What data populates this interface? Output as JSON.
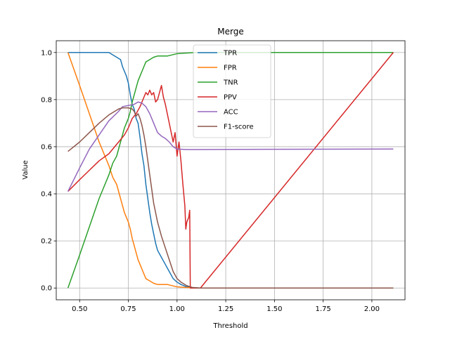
{
  "chart_data": {
    "type": "line",
    "title": "Merge",
    "xlabel": "Threshold",
    "ylabel": "Value",
    "xlim": [
      0.38,
      2.17
    ],
    "ylim": [
      -0.05,
      1.05
    ],
    "xticks": [
      0.5,
      0.75,
      1.0,
      1.25,
      1.5,
      1.75,
      2.0
    ],
    "xtick_labels": [
      "0.50",
      "0.75",
      "1.00",
      "1.25",
      "1.50",
      "1.75",
      "2.00"
    ],
    "yticks": [
      0.0,
      0.2,
      0.4,
      0.6,
      0.8,
      1.0
    ],
    "ytick_labels": [
      "0.0",
      "0.2",
      "0.4",
      "0.6",
      "0.8",
      "1.0"
    ],
    "grid": true,
    "legend_position": "top-center",
    "series": [
      {
        "name": "TPR",
        "color": "#1f77b4",
        "points": [
          [
            0.44,
            1.0
          ],
          [
            0.5,
            1.0
          ],
          [
            0.6,
            1.0
          ],
          [
            0.65,
            1.0
          ],
          [
            0.67,
            0.99
          ],
          [
            0.69,
            0.98
          ],
          [
            0.71,
            0.97
          ],
          [
            0.72,
            0.94
          ],
          [
            0.73,
            0.92
          ],
          [
            0.74,
            0.9
          ],
          [
            0.75,
            0.87
          ],
          [
            0.76,
            0.82
          ],
          [
            0.77,
            0.78
          ],
          [
            0.78,
            0.76
          ],
          [
            0.79,
            0.72
          ],
          [
            0.8,
            0.7
          ],
          [
            0.81,
            0.64
          ],
          [
            0.82,
            0.57
          ],
          [
            0.83,
            0.52
          ],
          [
            0.84,
            0.44
          ],
          [
            0.85,
            0.38
          ],
          [
            0.86,
            0.32
          ],
          [
            0.87,
            0.27
          ],
          [
            0.88,
            0.23
          ],
          [
            0.89,
            0.19
          ],
          [
            0.9,
            0.16
          ],
          [
            0.92,
            0.13
          ],
          [
            0.94,
            0.1
          ],
          [
            0.96,
            0.07
          ],
          [
            0.98,
            0.04
          ],
          [
            1.0,
            0.025
          ],
          [
            1.02,
            0.015
          ],
          [
            1.05,
            0.005
          ],
          [
            1.08,
            0.001
          ],
          [
            1.12,
            0.0
          ],
          [
            1.5,
            0.0
          ],
          [
            2.11,
            0.0
          ]
        ]
      },
      {
        "name": "FPR",
        "color": "#ff7f0e",
        "points": [
          [
            0.44,
            1.0
          ],
          [
            0.5,
            0.86
          ],
          [
            0.55,
            0.74
          ],
          [
            0.6,
            0.62
          ],
          [
            0.65,
            0.52
          ],
          [
            0.67,
            0.47
          ],
          [
            0.69,
            0.44
          ],
          [
            0.71,
            0.38
          ],
          [
            0.72,
            0.35
          ],
          [
            0.73,
            0.32
          ],
          [
            0.74,
            0.3
          ],
          [
            0.75,
            0.28
          ],
          [
            0.76,
            0.25
          ],
          [
            0.77,
            0.21
          ],
          [
            0.78,
            0.18
          ],
          [
            0.79,
            0.15
          ],
          [
            0.8,
            0.12
          ],
          [
            0.81,
            0.1
          ],
          [
            0.82,
            0.08
          ],
          [
            0.83,
            0.06
          ],
          [
            0.84,
            0.04
          ],
          [
            0.85,
            0.035
          ],
          [
            0.86,
            0.03
          ],
          [
            0.88,
            0.02
          ],
          [
            0.9,
            0.015
          ],
          [
            0.95,
            0.015
          ],
          [
            1.0,
            0.005
          ],
          [
            1.05,
            0.002
          ],
          [
            1.1,
            0.0
          ],
          [
            1.5,
            0.0
          ],
          [
            2.11,
            0.0
          ]
        ]
      },
      {
        "name": "TNR",
        "color": "#2ca02c",
        "points": [
          [
            0.44,
            0.0
          ],
          [
            0.5,
            0.14
          ],
          [
            0.55,
            0.26
          ],
          [
            0.6,
            0.38
          ],
          [
            0.65,
            0.48
          ],
          [
            0.67,
            0.53
          ],
          [
            0.69,
            0.56
          ],
          [
            0.71,
            0.62
          ],
          [
            0.72,
            0.65
          ],
          [
            0.73,
            0.68
          ],
          [
            0.74,
            0.7
          ],
          [
            0.75,
            0.72
          ],
          [
            0.76,
            0.75
          ],
          [
            0.77,
            0.79
          ],
          [
            0.78,
            0.82
          ],
          [
            0.79,
            0.85
          ],
          [
            0.8,
            0.88
          ],
          [
            0.81,
            0.9
          ],
          [
            0.82,
            0.92
          ],
          [
            0.83,
            0.94
          ],
          [
            0.84,
            0.96
          ],
          [
            0.85,
            0.965
          ],
          [
            0.86,
            0.97
          ],
          [
            0.88,
            0.98
          ],
          [
            0.9,
            0.985
          ],
          [
            0.95,
            0.985
          ],
          [
            1.0,
            0.995
          ],
          [
            1.05,
            0.998
          ],
          [
            1.1,
            1.0
          ],
          [
            1.5,
            1.0
          ],
          [
            2.11,
            1.0
          ]
        ]
      },
      {
        "name": "PPV",
        "color": "#d62728",
        "points": [
          [
            0.44,
            0.41
          ],
          [
            0.5,
            0.46
          ],
          [
            0.55,
            0.5
          ],
          [
            0.6,
            0.54
          ],
          [
            0.65,
            0.57
          ],
          [
            0.7,
            0.62
          ],
          [
            0.73,
            0.65
          ],
          [
            0.75,
            0.68
          ],
          [
            0.77,
            0.72
          ],
          [
            0.79,
            0.74
          ],
          [
            0.81,
            0.77
          ],
          [
            0.83,
            0.81
          ],
          [
            0.84,
            0.83
          ],
          [
            0.85,
            0.82
          ],
          [
            0.86,
            0.84
          ],
          [
            0.87,
            0.82
          ],
          [
            0.88,
            0.83
          ],
          [
            0.89,
            0.79
          ],
          [
            0.9,
            0.8
          ],
          [
            0.91,
            0.83
          ],
          [
            0.92,
            0.86
          ],
          [
            0.93,
            0.81
          ],
          [
            0.94,
            0.78
          ],
          [
            0.95,
            0.74
          ],
          [
            0.96,
            0.7
          ],
          [
            0.97,
            0.66
          ],
          [
            0.98,
            0.62
          ],
          [
            0.99,
            0.66
          ],
          [
            1.0,
            0.56
          ],
          [
            1.01,
            0.62
          ],
          [
            1.02,
            0.54
          ],
          [
            1.03,
            0.44
          ],
          [
            1.04,
            0.35
          ],
          [
            1.045,
            0.25
          ],
          [
            1.05,
            0.28
          ],
          [
            1.06,
            0.3
          ],
          [
            1.065,
            0.33
          ],
          [
            1.068,
            0.0
          ],
          [
            1.1,
            0.0
          ],
          [
            1.12,
            0.0
          ],
          [
            2.11,
            1.0
          ]
        ]
      },
      {
        "name": "ACC",
        "color": "#9467bd",
        "points": [
          [
            0.44,
            0.41
          ],
          [
            0.5,
            0.51
          ],
          [
            0.55,
            0.59
          ],
          [
            0.6,
            0.65
          ],
          [
            0.65,
            0.71
          ],
          [
            0.7,
            0.75
          ],
          [
            0.72,
            0.77
          ],
          [
            0.75,
            0.775
          ],
          [
            0.78,
            0.78
          ],
          [
            0.8,
            0.79
          ],
          [
            0.82,
            0.785
          ],
          [
            0.84,
            0.77
          ],
          [
            0.86,
            0.74
          ],
          [
            0.88,
            0.7
          ],
          [
            0.9,
            0.66
          ],
          [
            0.92,
            0.645
          ],
          [
            0.94,
            0.635
          ],
          [
            0.96,
            0.62
          ],
          [
            0.98,
            0.6
          ],
          [
            1.0,
            0.59
          ],
          [
            1.05,
            0.588
          ],
          [
            1.1,
            0.588
          ],
          [
            1.5,
            0.589
          ],
          [
            2.11,
            0.59
          ]
        ]
      },
      {
        "name": "F1-score",
        "color": "#8c564b",
        "points": [
          [
            0.44,
            0.58
          ],
          [
            0.5,
            0.62
          ],
          [
            0.55,
            0.66
          ],
          [
            0.6,
            0.7
          ],
          [
            0.65,
            0.735
          ],
          [
            0.7,
            0.76
          ],
          [
            0.72,
            0.765
          ],
          [
            0.75,
            0.765
          ],
          [
            0.77,
            0.76
          ],
          [
            0.78,
            0.75
          ],
          [
            0.79,
            0.73
          ],
          [
            0.8,
            0.74
          ],
          [
            0.81,
            0.72
          ],
          [
            0.82,
            0.69
          ],
          [
            0.83,
            0.65
          ],
          [
            0.84,
            0.6
          ],
          [
            0.85,
            0.54
          ],
          [
            0.86,
            0.48
          ],
          [
            0.87,
            0.42
          ],
          [
            0.88,
            0.36
          ],
          [
            0.89,
            0.32
          ],
          [
            0.9,
            0.28
          ],
          [
            0.92,
            0.22
          ],
          [
            0.94,
            0.17
          ],
          [
            0.96,
            0.12
          ],
          [
            0.98,
            0.07
          ],
          [
            1.0,
            0.04
          ],
          [
            1.02,
            0.025
          ],
          [
            1.05,
            0.01
          ],
          [
            1.08,
            0.002
          ],
          [
            1.12,
            0.0
          ],
          [
            1.5,
            0.0
          ],
          [
            2.11,
            0.0
          ]
        ]
      }
    ]
  }
}
